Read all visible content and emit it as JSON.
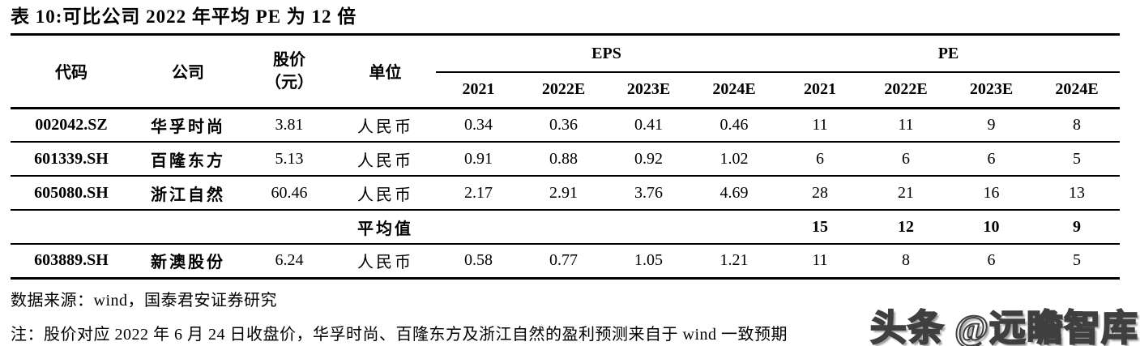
{
  "title": "表 10:可比公司 2022 年平均 PE 为 12 倍",
  "table": {
    "col_headers": {
      "code": "代码",
      "company": "公司",
      "price_line1": "股价",
      "price_line2": "（元）",
      "unit": "单位"
    },
    "group_headers": {
      "eps": "EPS",
      "pe": "PE"
    },
    "year_headers": [
      "2021",
      "2022E",
      "2023E",
      "2024E",
      "2021",
      "2022E",
      "2023E",
      "2024E"
    ],
    "rows": [
      {
        "type": "data",
        "cells": [
          "002042.SZ",
          "华孚时尚",
          "3.81",
          "人民币",
          "0.34",
          "0.36",
          "0.41",
          "0.46",
          "11",
          "11",
          "9",
          "8"
        ]
      },
      {
        "type": "data",
        "cells": [
          "601339.SH",
          "百隆东方",
          "5.13",
          "人民币",
          "0.91",
          "0.88",
          "0.92",
          "1.02",
          "6",
          "6",
          "6",
          "5"
        ]
      },
      {
        "type": "data",
        "cells": [
          "605080.SH",
          "浙江自然",
          "60.46",
          "人民币",
          "2.17",
          "2.91",
          "3.76",
          "4.69",
          "28",
          "21",
          "16",
          "13"
        ]
      },
      {
        "type": "average",
        "cells": [
          "",
          "",
          "",
          "平均值",
          "",
          "",
          "",
          "",
          "15",
          "12",
          "10",
          "9"
        ]
      },
      {
        "type": "data",
        "cells": [
          "603889.SH",
          "新澳股份",
          "6.24",
          "人民币",
          "0.58",
          "0.77",
          "1.05",
          "1.21",
          "11",
          "8",
          "6",
          "5"
        ]
      }
    ]
  },
  "footer": {
    "source": "数据来源：wind，国泰君安证券研究",
    "note": "注：股价对应 2022 年 6 月 24 日收盘价，华孚时尚、百隆东方及浙江自然的盈利预测来自于 wind 一致预期"
  },
  "watermark": {
    "text": "头条 @远瞻智库"
  },
  "colors": {
    "text": "#000000",
    "background": "#ffffff",
    "watermark_stroke": "#3f3f3f"
  }
}
